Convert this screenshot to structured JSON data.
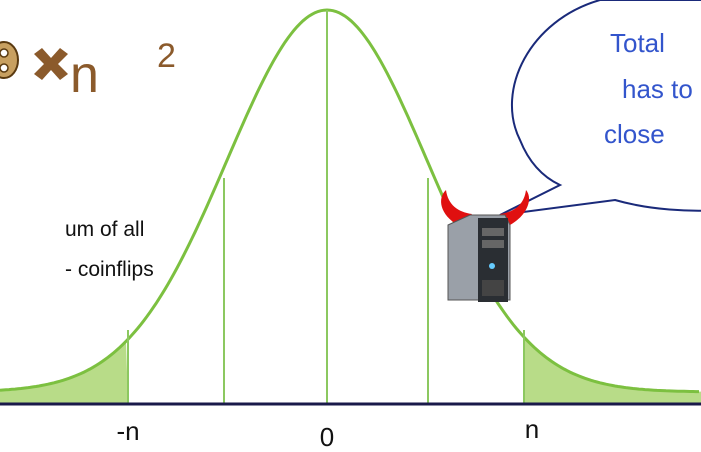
{
  "header": {
    "base": "n",
    "exponent": "2"
  },
  "caption": [
    "um of all",
    "- coinflips"
  ],
  "bubble": [
    "Total",
    "has to",
    "close"
  ],
  "axis_labels": [
    "-n",
    "0",
    "n"
  ]
}
